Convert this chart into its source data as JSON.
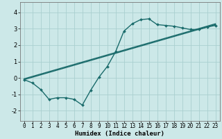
{
  "xlabel": "Humidex (Indice chaleur)",
  "bg_color": "#cce8e8",
  "grid_color": "#aacfcf",
  "line_color": "#1a6b6b",
  "xlim": [
    -0.5,
    23.5
  ],
  "ylim": [
    -2.6,
    4.6
  ],
  "xticks": [
    0,
    1,
    2,
    3,
    4,
    5,
    6,
    7,
    8,
    9,
    10,
    11,
    12,
    13,
    14,
    15,
    16,
    17,
    18,
    19,
    20,
    21,
    22,
    23
  ],
  "yticks": [
    -2,
    -1,
    0,
    1,
    2,
    3,
    4
  ],
  "curve_x": [
    0,
    1,
    2,
    3,
    4,
    5,
    6,
    7,
    8,
    9,
    10,
    11,
    12,
    13,
    14,
    15,
    16,
    17,
    18,
    19,
    20,
    21,
    22,
    23
  ],
  "curve_y": [
    -0.1,
    -0.3,
    -0.7,
    -1.3,
    -1.2,
    -1.2,
    -1.3,
    -1.65,
    -0.75,
    0.05,
    0.7,
    1.6,
    2.85,
    3.3,
    3.55,
    3.6,
    3.25,
    3.2,
    3.15,
    3.05,
    2.95,
    2.95,
    3.1,
    3.2
  ],
  "line2_x": [
    0,
    23
  ],
  "line2_y": [
    -0.1,
    3.25
  ],
  "line3_x": [
    0,
    23
  ],
  "line3_y": [
    -0.05,
    3.3
  ],
  "xlabel_fontsize": 6.5,
  "tick_fontsize": 5.5
}
